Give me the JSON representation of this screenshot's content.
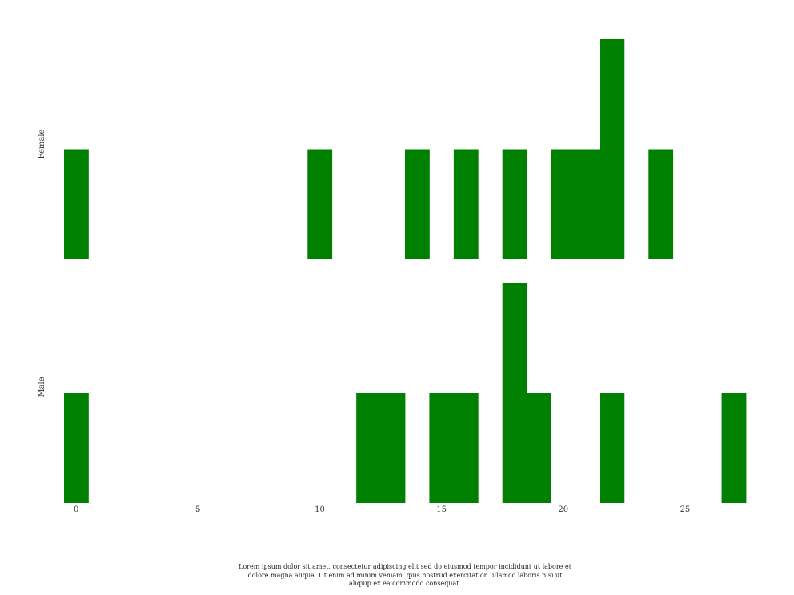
{
  "chart_data": {
    "type": "bar",
    "title": "",
    "xlabel": "",
    "ylabel": "",
    "bar_color": "#008000",
    "grid": false,
    "xlim": [
      -0.5,
      27.5
    ],
    "ylim": [
      0,
      2
    ],
    "xticks": [
      0,
      5,
      10,
      15,
      20,
      25
    ],
    "series": [
      {
        "name": "Female",
        "x": [
          0,
          10,
          14,
          16,
          18,
          20,
          21,
          22,
          24
        ],
        "values": [
          1,
          1,
          1,
          1,
          1,
          1,
          1,
          2,
          1
        ]
      },
      {
        "name": "Male",
        "x": [
          0,
          12,
          13,
          15,
          16,
          18,
          19,
          22,
          27
        ],
        "values": [
          1,
          1,
          1,
          1,
          1,
          2,
          1,
          1,
          1
        ]
      }
    ]
  },
  "caption": "Lorem ipsum dolor sit amet, consectetur adipiscing elit sed do eiusmod tempor incididunt ut labore et dolore magna aliqua. Ut enim ad minim veniam, quis nostrud exercitation ullamco laboris nisi ut aliquip ex ea commodo consequat."
}
